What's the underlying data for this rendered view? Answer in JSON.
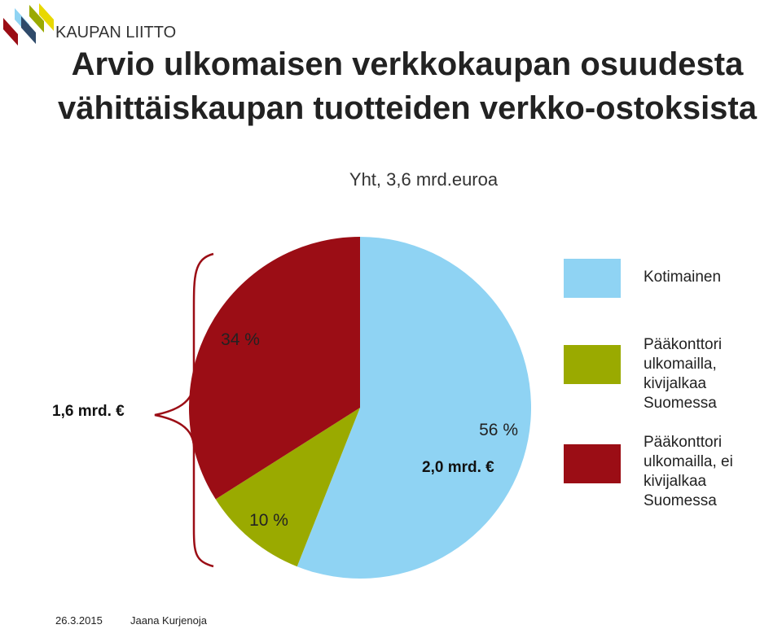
{
  "logo": "KAUPAN LIITTO",
  "chart_data": {
    "type": "pie",
    "title": "Arvio ulkomaisen verkkokaupan osuudesta vähittäiskaupan tuotteiden verkko-ostoksista",
    "subtitle": "Yht, 3,6 mrd.euroa",
    "categories": [
      "Kotimainen",
      "Pääkonttori ulkomailla, kivijalkaa Suomessa",
      "Pääkonttori ulkomailla, ei kivijalkaa Suomessa"
    ],
    "values": [
      56,
      10,
      34
    ],
    "value_labels": [
      "56 %",
      "10 %",
      "34 %"
    ],
    "colors": [
      "#8fd3f3",
      "#9aaa00",
      "#9b0d15"
    ],
    "annotations": [
      "1,6 mrd. €",
      "2,0 mrd. €"
    ]
  },
  "footer": {
    "date": "26.3.2015",
    "author": "Jaana Kurjenoja"
  }
}
